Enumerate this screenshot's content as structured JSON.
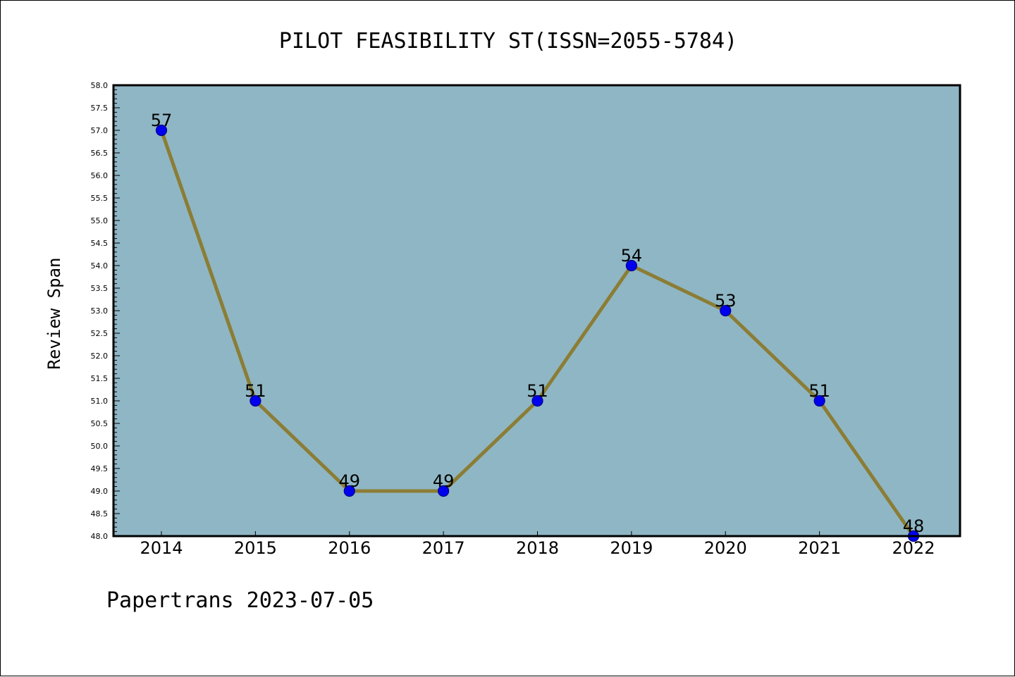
{
  "chart_data": {
    "type": "line",
    "title": "PILOT FEASIBILITY ST(ISSN=2055-5784)",
    "xlabel": "",
    "ylabel": "Review Span",
    "categories": [
      "2014",
      "2015",
      "2016",
      "2017",
      "2018",
      "2019",
      "2020",
      "2021",
      "2022"
    ],
    "series": [
      {
        "values": [
          57,
          51,
          49,
          49,
          51,
          54,
          53,
          51,
          48
        ]
      }
    ],
    "data_labels": [
      "57",
      "51",
      "49",
      "49",
      "51",
      "54",
      "53",
      "51",
      "48"
    ],
    "ylim": [
      48.0,
      58.0
    ],
    "yticks": [
      "48.0",
      "48.5",
      "49.0",
      "49.5",
      "50.0",
      "50.5",
      "51.0",
      "51.5",
      "52.0",
      "52.5",
      "53.0",
      "53.5",
      "54.0",
      "54.5",
      "55.0",
      "55.5",
      "56.0",
      "56.5",
      "57.0",
      "57.5",
      "58.0"
    ],
    "grid": false,
    "legend": "none",
    "colors": {
      "plot_background": "#8fb6c4",
      "line": "#8b7d35",
      "marker": "#0000ee",
      "marker_edge": "#00008b"
    }
  },
  "footer": {
    "text": "Papertrans 2023-07-05"
  }
}
